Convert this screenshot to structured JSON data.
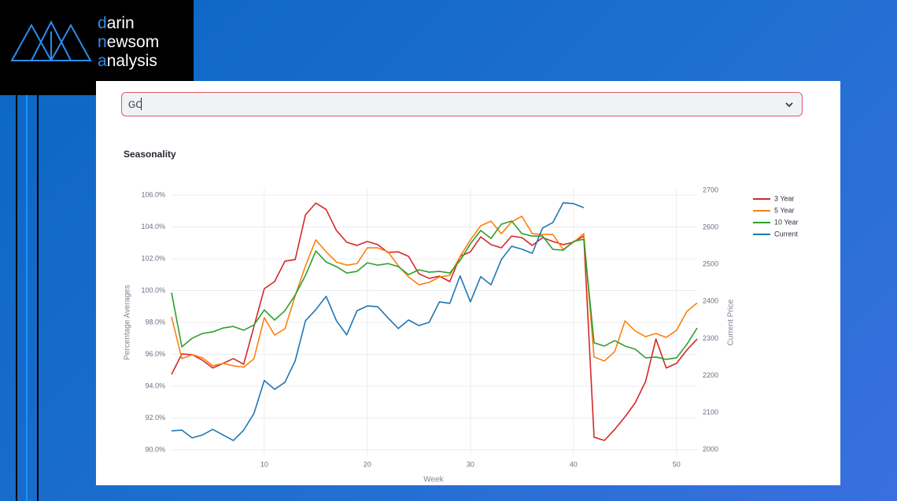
{
  "logo": {
    "lines": [
      "darin",
      "newsom",
      "analysis"
    ]
  },
  "select": {
    "value": "GC"
  },
  "chart_data": {
    "type": "line",
    "title": "Seasonality",
    "xlabel": "Week",
    "ylabel": "Percentage Averages",
    "y2label": "Current Price",
    "grid": true,
    "x": [
      1,
      2,
      3,
      4,
      5,
      6,
      7,
      8,
      9,
      10,
      11,
      12,
      13,
      14,
      15,
      16,
      17,
      18,
      19,
      20,
      21,
      22,
      23,
      24,
      25,
      26,
      27,
      28,
      29,
      30,
      31,
      32,
      33,
      34,
      35,
      36,
      37,
      38,
      39,
      40,
      41,
      42,
      43,
      44,
      45,
      46,
      47,
      48,
      49,
      50,
      51,
      52
    ],
    "xlim": [
      1,
      52
    ],
    "xticks": [
      10,
      20,
      30,
      40,
      50
    ],
    "ylim": [
      89.7,
      106.4
    ],
    "yticks": [
      {
        "value": 90,
        "label": "90.0%"
      },
      {
        "value": 92,
        "label": "92.0%"
      },
      {
        "value": 94,
        "label": "94.0%"
      },
      {
        "value": 96,
        "label": "96.0%"
      },
      {
        "value": 98,
        "label": "98.0%"
      },
      {
        "value": 100,
        "label": "100.0%"
      },
      {
        "value": 102,
        "label": "102.0%"
      },
      {
        "value": 104,
        "label": "104.0%"
      },
      {
        "value": 106,
        "label": "106.0%"
      }
    ],
    "y2lim": [
      1987,
      2704
    ],
    "y2ticks": [
      2000,
      2100,
      2200,
      2300,
      2400,
      2500,
      2600,
      2700
    ],
    "series": [
      {
        "name": "3 Year",
        "color": "#d62728",
        "values": [
          94.74,
          96.02,
          95.98,
          95.63,
          95.14,
          95.43,
          95.73,
          95.38,
          97.75,
          100.12,
          100.57,
          101.85,
          101.95,
          104.77,
          105.5,
          105.1,
          103.78,
          103.04,
          102.84,
          103.09,
          102.89,
          102.4,
          102.44,
          102.15,
          101.06,
          100.77,
          100.91,
          100.57,
          102.15,
          102.44,
          103.38,
          102.89,
          102.69,
          103.43,
          103.33,
          102.84,
          103.33,
          103.09,
          102.89,
          103.04,
          103.43,
          90.79,
          90.59,
          91.28,
          92.07,
          92.96,
          94.3,
          96.96,
          95.14,
          95.43,
          96.27,
          96.96
        ]
      },
      {
        "name": "5 Year",
        "color": "#ff7f0e",
        "values": [
          98.35,
          95.73,
          95.98,
          95.78,
          95.28,
          95.43,
          95.28,
          95.19,
          95.73,
          98.3,
          97.21,
          97.6,
          99.68,
          101.56,
          103.19,
          102.44,
          101.8,
          101.6,
          101.7,
          102.69,
          102.69,
          102.44,
          101.56,
          100.86,
          100.37,
          100.52,
          100.86,
          100.96,
          102.15,
          103.19,
          104.07,
          104.37,
          103.58,
          104.32,
          104.67,
          103.58,
          103.53,
          103.53,
          102.59,
          103.04,
          103.58,
          95.83,
          95.58,
          96.17,
          98.1,
          97.46,
          97.11,
          97.31,
          97.06,
          97.51,
          98.69,
          99.23
        ]
      },
      {
        "name": "10 Year",
        "color": "#2ca02c",
        "values": [
          99.88,
          96.47,
          97.01,
          97.31,
          97.41,
          97.65,
          97.75,
          97.51,
          97.85,
          98.79,
          98.15,
          98.74,
          99.73,
          100.96,
          102.49,
          101.8,
          101.51,
          101.11,
          101.21,
          101.75,
          101.6,
          101.7,
          101.51,
          101.01,
          101.31,
          101.16,
          101.21,
          101.11,
          101.9,
          102.94,
          103.78,
          103.28,
          104.17,
          104.37,
          103.58,
          103.43,
          103.43,
          102.59,
          102.54,
          103.09,
          103.23,
          96.72,
          96.52,
          96.86,
          96.52,
          96.32,
          95.78,
          95.83,
          95.68,
          95.78,
          96.62,
          97.65
        ]
      },
      {
        "name": "Current",
        "color": "#1f77b4",
        "axis": "y2",
        "values": [
          2051,
          2053,
          2032,
          2040,
          2055,
          2040,
          2025,
          2053,
          2098,
          2187,
          2163,
          2182,
          2240,
          2348,
          2378,
          2414,
          2348,
          2310,
          2375,
          2388,
          2386,
          2356,
          2327,
          2350,
          2335,
          2344,
          2399,
          2395,
          2469,
          2399,
          2467,
          2445,
          2513,
          2549,
          2541,
          2530,
          2598,
          2613,
          2666,
          2664,
          2653,
          null,
          null,
          null,
          null,
          null,
          null,
          null,
          null,
          null,
          null,
          null
        ]
      }
    ]
  }
}
